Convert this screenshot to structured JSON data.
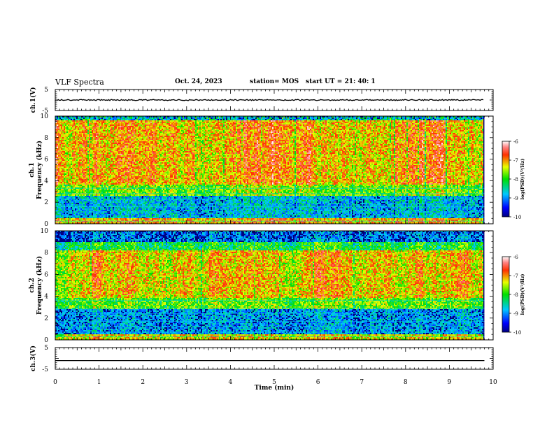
{
  "header": {
    "title": "VLF Spectra",
    "date": "Oct. 24, 2023",
    "station": "station= MOS",
    "start_ut": "start  UT =   21: 40: 1"
  },
  "colorbar_title": "log(PSD)(V²/Hz)",
  "colors": {
    "background": "#ffffff",
    "spectrogram_low": "#00007f",
    "spectrogram_high": "#ff0000",
    "trace": "#000000"
  },
  "chart_data": [
    {
      "type": "line",
      "panel": "ch1-voltage",
      "ylabel": "ch.1(V)",
      "ylim": [
        -5,
        5
      ],
      "yticks": [
        "5",
        "-5"
      ],
      "xlim": [
        0,
        10
      ],
      "series": [
        {
          "x": [
            0,
            9.8
          ],
          "y": [
            0,
            0
          ]
        }
      ]
    },
    {
      "type": "heatmap",
      "panel": "ch1-spectrogram",
      "ylabel": "ch.1\nFrequency (kHz)",
      "ylim": [
        0,
        10
      ],
      "yticks": [
        "0",
        "2",
        "4",
        "6",
        "8",
        "10"
      ],
      "xlim": [
        0,
        10
      ],
      "x_data_end": 9.8,
      "colorbar": {
        "range": [
          -10,
          -6
        ],
        "ticks": [
          "-6",
          "-7",
          "-8",
          "-9",
          "-10"
        ]
      }
    },
    {
      "type": "heatmap",
      "panel": "ch2-spectrogram",
      "ylabel": "ch.2\nFrequency (kHz)",
      "ylim": [
        0,
        10
      ],
      "yticks": [
        "0",
        "2",
        "4",
        "6",
        "8",
        "10"
      ],
      "xlim": [
        0,
        10
      ],
      "x_data_end": 9.8,
      "colorbar": {
        "range": [
          -10,
          -6
        ],
        "ticks": [
          "-6",
          "-7",
          "-8",
          "-9",
          "-10"
        ]
      }
    },
    {
      "type": "line",
      "panel": "ch3-voltage",
      "ylabel": "ch.3(V)",
      "ylim": [
        -5,
        5
      ],
      "yticks": [
        "5",
        "-5"
      ],
      "xlim": [
        0,
        10
      ],
      "xlabel": "Time (min)",
      "xticks": [
        "0",
        "1",
        "2",
        "3",
        "4",
        "5",
        "6",
        "7",
        "8",
        "9",
        "10"
      ],
      "series": [
        {
          "x": [
            0,
            9.8
          ],
          "y": [
            -1,
            -1
          ]
        }
      ]
    }
  ]
}
